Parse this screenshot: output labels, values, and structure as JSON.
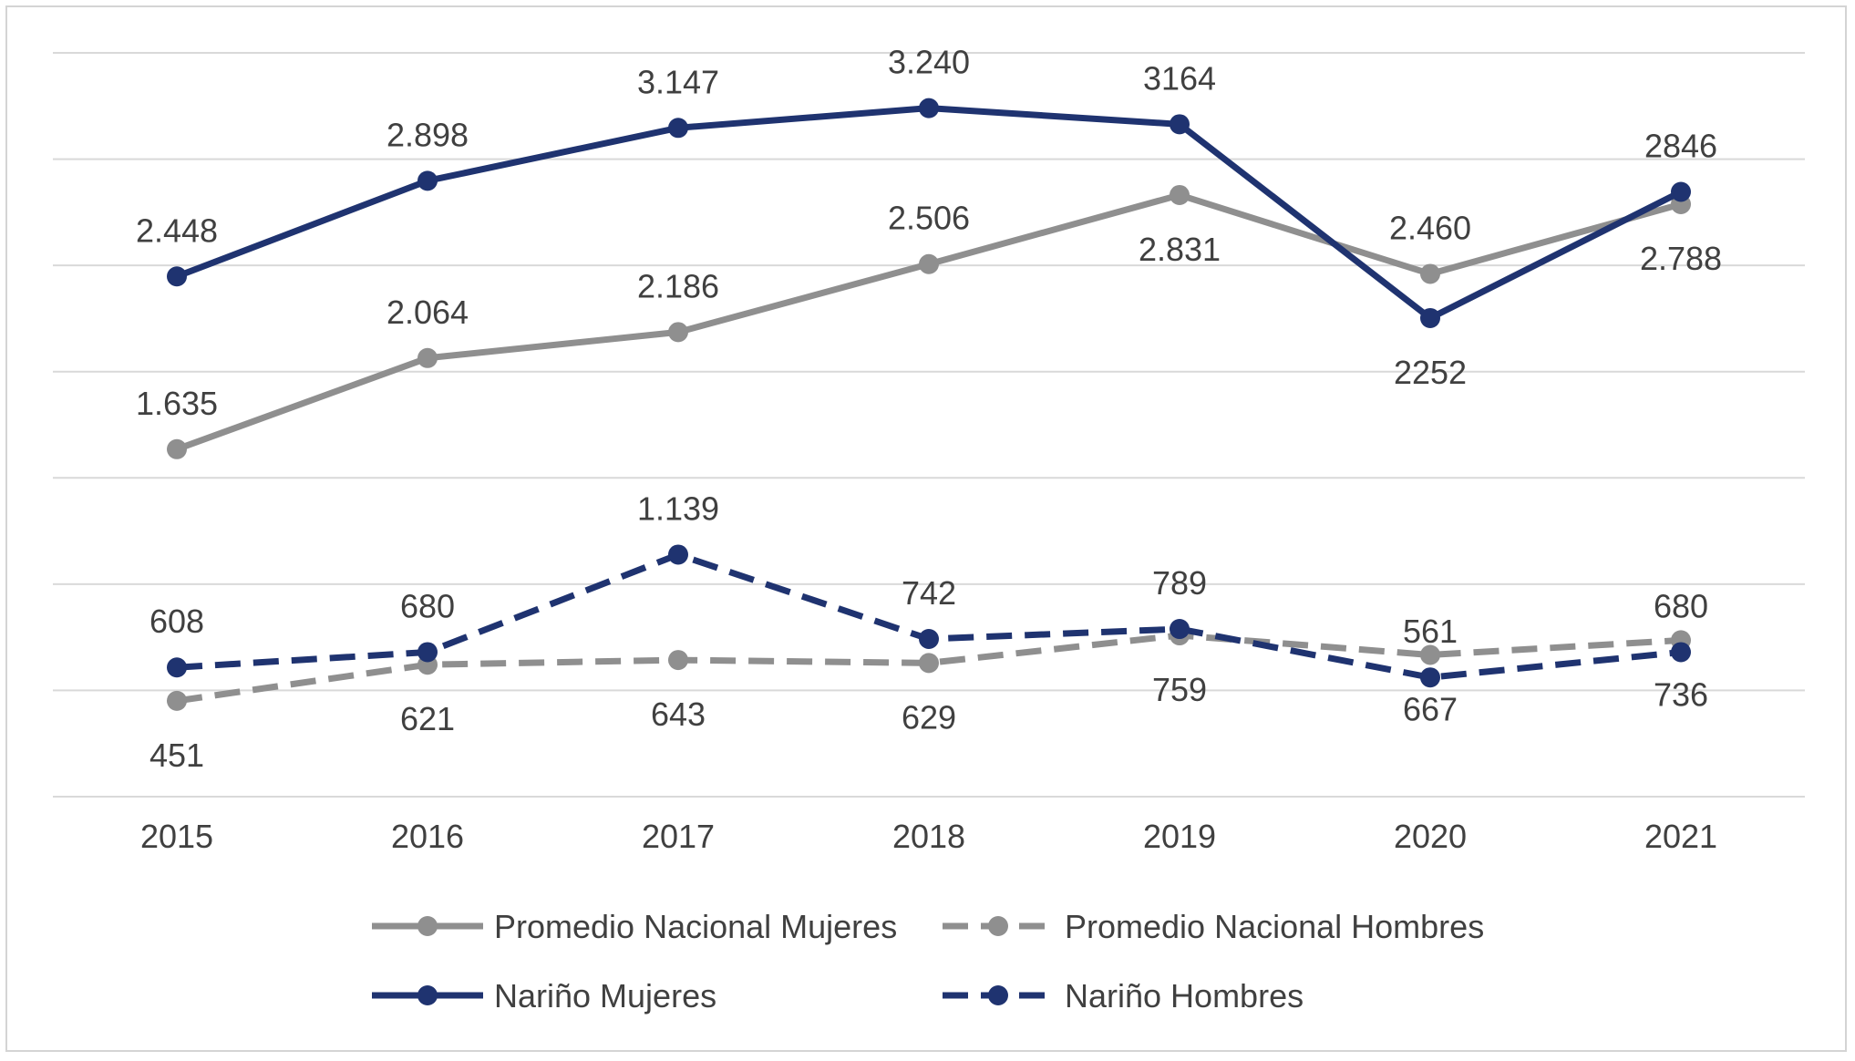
{
  "chart_data": {
    "type": "line",
    "title": "",
    "xlabel": "",
    "ylabel": "",
    "x": [
      "2015",
      "2016",
      "2017",
      "2018",
      "2019",
      "2020",
      "2021"
    ],
    "ylim": [
      0,
      3500
    ],
    "grid": true,
    "legend_position": "bottom",
    "series": [
      {
        "name": "Promedio Nacional Mujeres",
        "values": [
          1635,
          2064,
          2186,
          2506,
          2831,
          2460,
          2788
        ],
        "labels": [
          "1.635",
          "2.064",
          "2.186",
          "2.506",
          "2.831",
          "2.460",
          "2.788"
        ],
        "label_pos": [
          "above",
          "above",
          "above",
          "above",
          "below",
          "above",
          "below"
        ],
        "color": "#8f8f8f",
        "dashed": false
      },
      {
        "name": "Promedio Nacional Hombres",
        "values": [
          451,
          621,
          643,
          629,
          759,
          667,
          736
        ],
        "labels": [
          "451",
          "621",
          "643",
          "629",
          "759",
          "667",
          "736"
        ],
        "label_pos": [
          "below",
          "below",
          "below",
          "below",
          "below",
          "below",
          "below"
        ],
        "color": "#8f8f8f",
        "dashed": true
      },
      {
        "name": "Nariño Mujeres",
        "values": [
          2448,
          2898,
          3147,
          3240,
          3164,
          2252,
          2846
        ],
        "labels": [
          "2.448",
          "2.898",
          "3.147",
          "3.240",
          "3164",
          "2252",
          "2846"
        ],
        "label_pos": [
          "above",
          "above",
          "above",
          "above",
          "above",
          "below",
          "above"
        ],
        "color": "#1f3370",
        "dashed": false
      },
      {
        "name": "Nariño Hombres",
        "values": [
          608,
          680,
          1139,
          742,
          789,
          561,
          680
        ],
        "labels": [
          "608",
          "680",
          "1.139",
          "742",
          "789",
          "561",
          "680"
        ],
        "label_pos": [
          "above",
          "above",
          "above",
          "above",
          "above",
          "above",
          "above"
        ],
        "color": "#1f3370",
        "dashed": true
      }
    ]
  }
}
